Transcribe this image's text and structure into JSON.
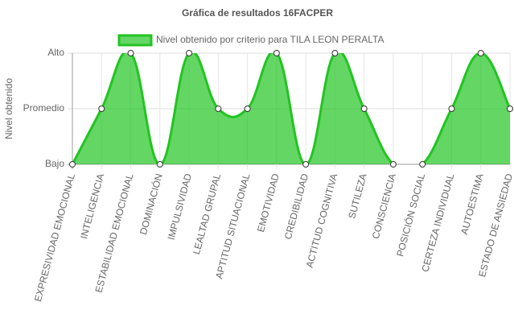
{
  "chart_data": {
    "type": "line",
    "title": "Gráfica de resultados 16FACPER",
    "y_label": "Nivel obtenido",
    "categories": [
      "EXPRESIVIDAD EMOCIONAL",
      "INTELIGENCIA",
      "ESTABILIDAD EMOCIONAL",
      "DOMINACIÓN",
      "IMPULSIVIDAD",
      "LEALTAD GRUPAL",
      "APTITUD SITUACIONAL",
      "EMOTIVIDAD",
      "CREDIBILIDAD",
      "ACTITUD COGNITIVA",
      "SUTILEZA",
      "CONSCIENCIA",
      "POSICIÓN SOCIAL",
      "CERTEZA INDIVIDUAL",
      "AUTOESTIMA",
      "ESTADO DE ANSIEDAD"
    ],
    "series": [
      {
        "name": "Nivel obtenido por criterio para TILA LEON PERALTA",
        "color": "#22c422",
        "fill": true,
        "values": [
          0,
          1,
          2,
          0,
          2,
          1,
          1,
          2,
          0,
          2,
          1,
          0,
          0,
          1,
          2,
          1
        ]
      }
    ],
    "ylim": [
      0,
      2
    ],
    "yticks": [
      {
        "value": 0,
        "label": "Bajo"
      },
      {
        "value": 1,
        "label": "Promedio"
      },
      {
        "value": 2,
        "label": "Alto"
      }
    ],
    "grid": true,
    "legend": "top"
  }
}
